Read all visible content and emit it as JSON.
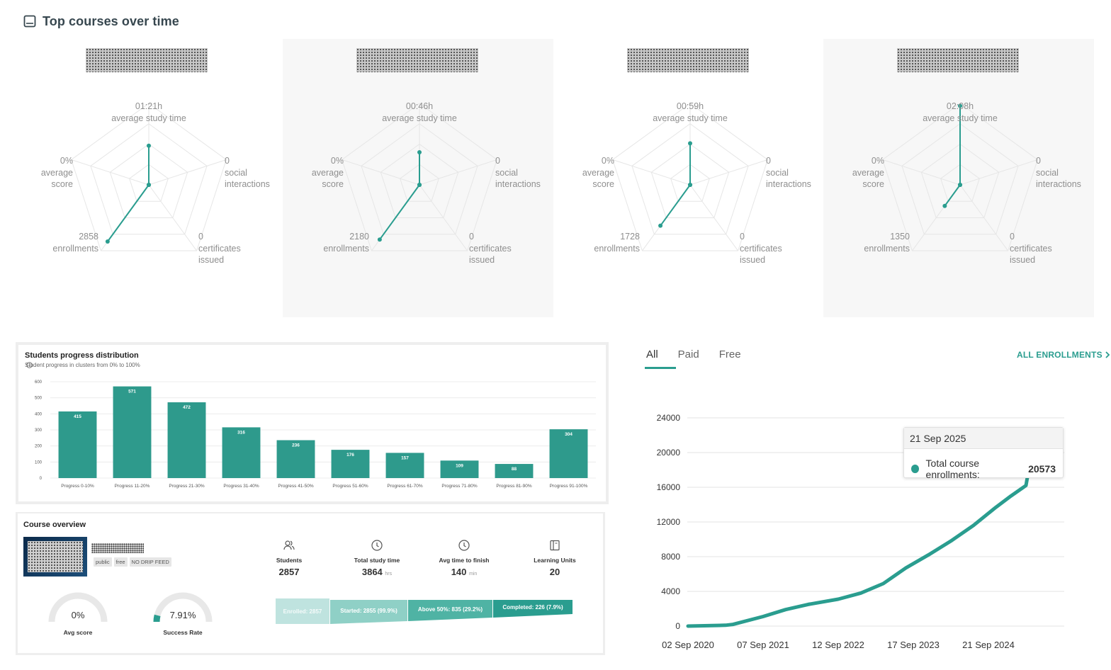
{
  "header": {
    "title": "Top courses over time",
    "icon": "book-icon"
  },
  "radar_panels": [
    {
      "study_time": "01:21h",
      "study_time_label": "average study time",
      "avg_score": "0%",
      "avg_score_label1": "average",
      "avg_score_label2": "score",
      "social": "0",
      "social_label1": "social",
      "social_label2": "interactions",
      "enrollments": "2858",
      "enrollments_label": "enrollments",
      "certificates": "0",
      "certificates_label1": "certificates",
      "certificates_label2": "issued",
      "axis_values": {
        "study": 0.48,
        "social": 0,
        "certificates": 0,
        "enrollments": 0.86,
        "score": 0
      }
    },
    {
      "study_time": "00:46h",
      "study_time_label": "average study time",
      "avg_score": "0%",
      "avg_score_label1": "average",
      "avg_score_label2": "score",
      "social": "0",
      "social_label1": "social",
      "social_label2": "interactions",
      "enrollments": "2180",
      "enrollments_label": "enrollments",
      "certificates": "0",
      "certificates_label1": "certificates",
      "certificates_label2": "issued",
      "axis_values": {
        "study": 0.4,
        "social": 0,
        "certificates": 0,
        "enrollments": 0.83,
        "score": 0
      }
    },
    {
      "study_time": "00:59h",
      "study_time_label": "average study time",
      "avg_score": "0%",
      "avg_score_label1": "average",
      "avg_score_label2": "score",
      "social": "0",
      "social_label1": "social",
      "social_label2": "interactions",
      "enrollments": "1728",
      "enrollments_label": "enrollments",
      "certificates": "0",
      "certificates_label1": "certificates",
      "certificates_label2": "issued",
      "axis_values": {
        "study": 0.51,
        "social": 0,
        "certificates": 0,
        "enrollments": 0.62,
        "score": 0
      }
    },
    {
      "study_time": "02:08h",
      "study_time_label": "average study time",
      "avg_score": "0%",
      "avg_score_label1": "average",
      "avg_score_label2": "score",
      "social": "0",
      "social_label1": "social",
      "social_label2": "interactions",
      "enrollments": "1350",
      "enrollments_label": "enrollments",
      "certificates": "0",
      "certificates_label1": "certificates",
      "certificates_label2": "issued",
      "axis_values": {
        "study": 0.97,
        "social": 0,
        "certificates": 0,
        "enrollments": 0.32,
        "score": 0
      }
    }
  ],
  "progress": {
    "title": "Students progress distribution",
    "subtitle": "Student progress in clusters from 0% to 100%",
    "info_icon": "info-icon"
  },
  "overview": {
    "title": "Course overview",
    "tags": [
      "public",
      "free",
      "NO DRIP FEED"
    ],
    "stats": [
      {
        "icon": "users-icon",
        "label": "Students",
        "value": "2857",
        "unit": ""
      },
      {
        "icon": "clock-icon",
        "label": "Total study time",
        "value": "3864",
        "unit": "hrs"
      },
      {
        "icon": "clock-icon",
        "label": "Avg time to finish",
        "value": "140",
        "unit": "min"
      },
      {
        "icon": "book-icon",
        "label": "Learning Units",
        "value": "20",
        "unit": ""
      }
    ],
    "gauges": [
      {
        "label": "Avg score",
        "value": "0%",
        "fraction": 0
      },
      {
        "label": "Success Rate",
        "value": "7.91%",
        "fraction": 0.0791
      }
    ],
    "funnel": [
      {
        "label": "Enrolled: 2857",
        "color": "#bfe3df"
      },
      {
        "label": "Started: 2855 (99.9%)",
        "color": "#8fd0c6"
      },
      {
        "label": "Above 50%: 835 (29.2%)",
        "color": "#4fb3a4"
      },
      {
        "label": "Completed: 226 (7.9%)",
        "color": "#2a9d8f"
      }
    ]
  },
  "enrollments": {
    "tabs": [
      "All",
      "Paid",
      "Free"
    ],
    "all_link": "ALL ENROLLMENTS",
    "tooltip_date": "21 Sep 2025",
    "tooltip_label": "Total course enrollments:",
    "tooltip_value": "20573"
  },
  "chart_data": [
    {
      "type": "bar",
      "title": "Students progress distribution",
      "categories": [
        "Progress 0-10%",
        "Progress 11-20%",
        "Progress 21-30%",
        "Progress 31-40%",
        "Progress 41-50%",
        "Progress 51-60%",
        "Progress 61-70%",
        "Progress 71-80%",
        "Progress 81-90%",
        "Progress 91-100%"
      ],
      "values": [
        415,
        571,
        472,
        316,
        236,
        176,
        157,
        109,
        88,
        304
      ],
      "yticks": [
        0,
        100,
        200,
        300,
        400,
        500,
        600
      ],
      "ylim": [
        0,
        600
      ],
      "color": "#2e9a8c"
    },
    {
      "type": "line",
      "title": "Total course enrollments",
      "x_labels": [
        "02 Sep 2020",
        "07 Sep 2021",
        "12 Sep 2022",
        "17 Sep 2023",
        "21 Sep 2024"
      ],
      "yticks": [
        0,
        4000,
        8000,
        12000,
        16000,
        20000,
        24000
      ],
      "ylim": [
        0,
        24000
      ],
      "x": [
        0,
        0.5,
        0.6,
        1.0,
        1.3,
        1.6,
        2.0,
        2.3,
        2.6,
        2.9,
        3.2,
        3.5,
        3.8,
        4.1,
        4.3,
        4.45,
        4.5,
        4.52
      ],
      "y": [
        0,
        100,
        200,
        1100,
        1900,
        2500,
        3100,
        3800,
        4900,
        6700,
        8200,
        9800,
        11600,
        13700,
        15000,
        15900,
        16200,
        17200
      ],
      "color": "#2a9d8f"
    }
  ]
}
